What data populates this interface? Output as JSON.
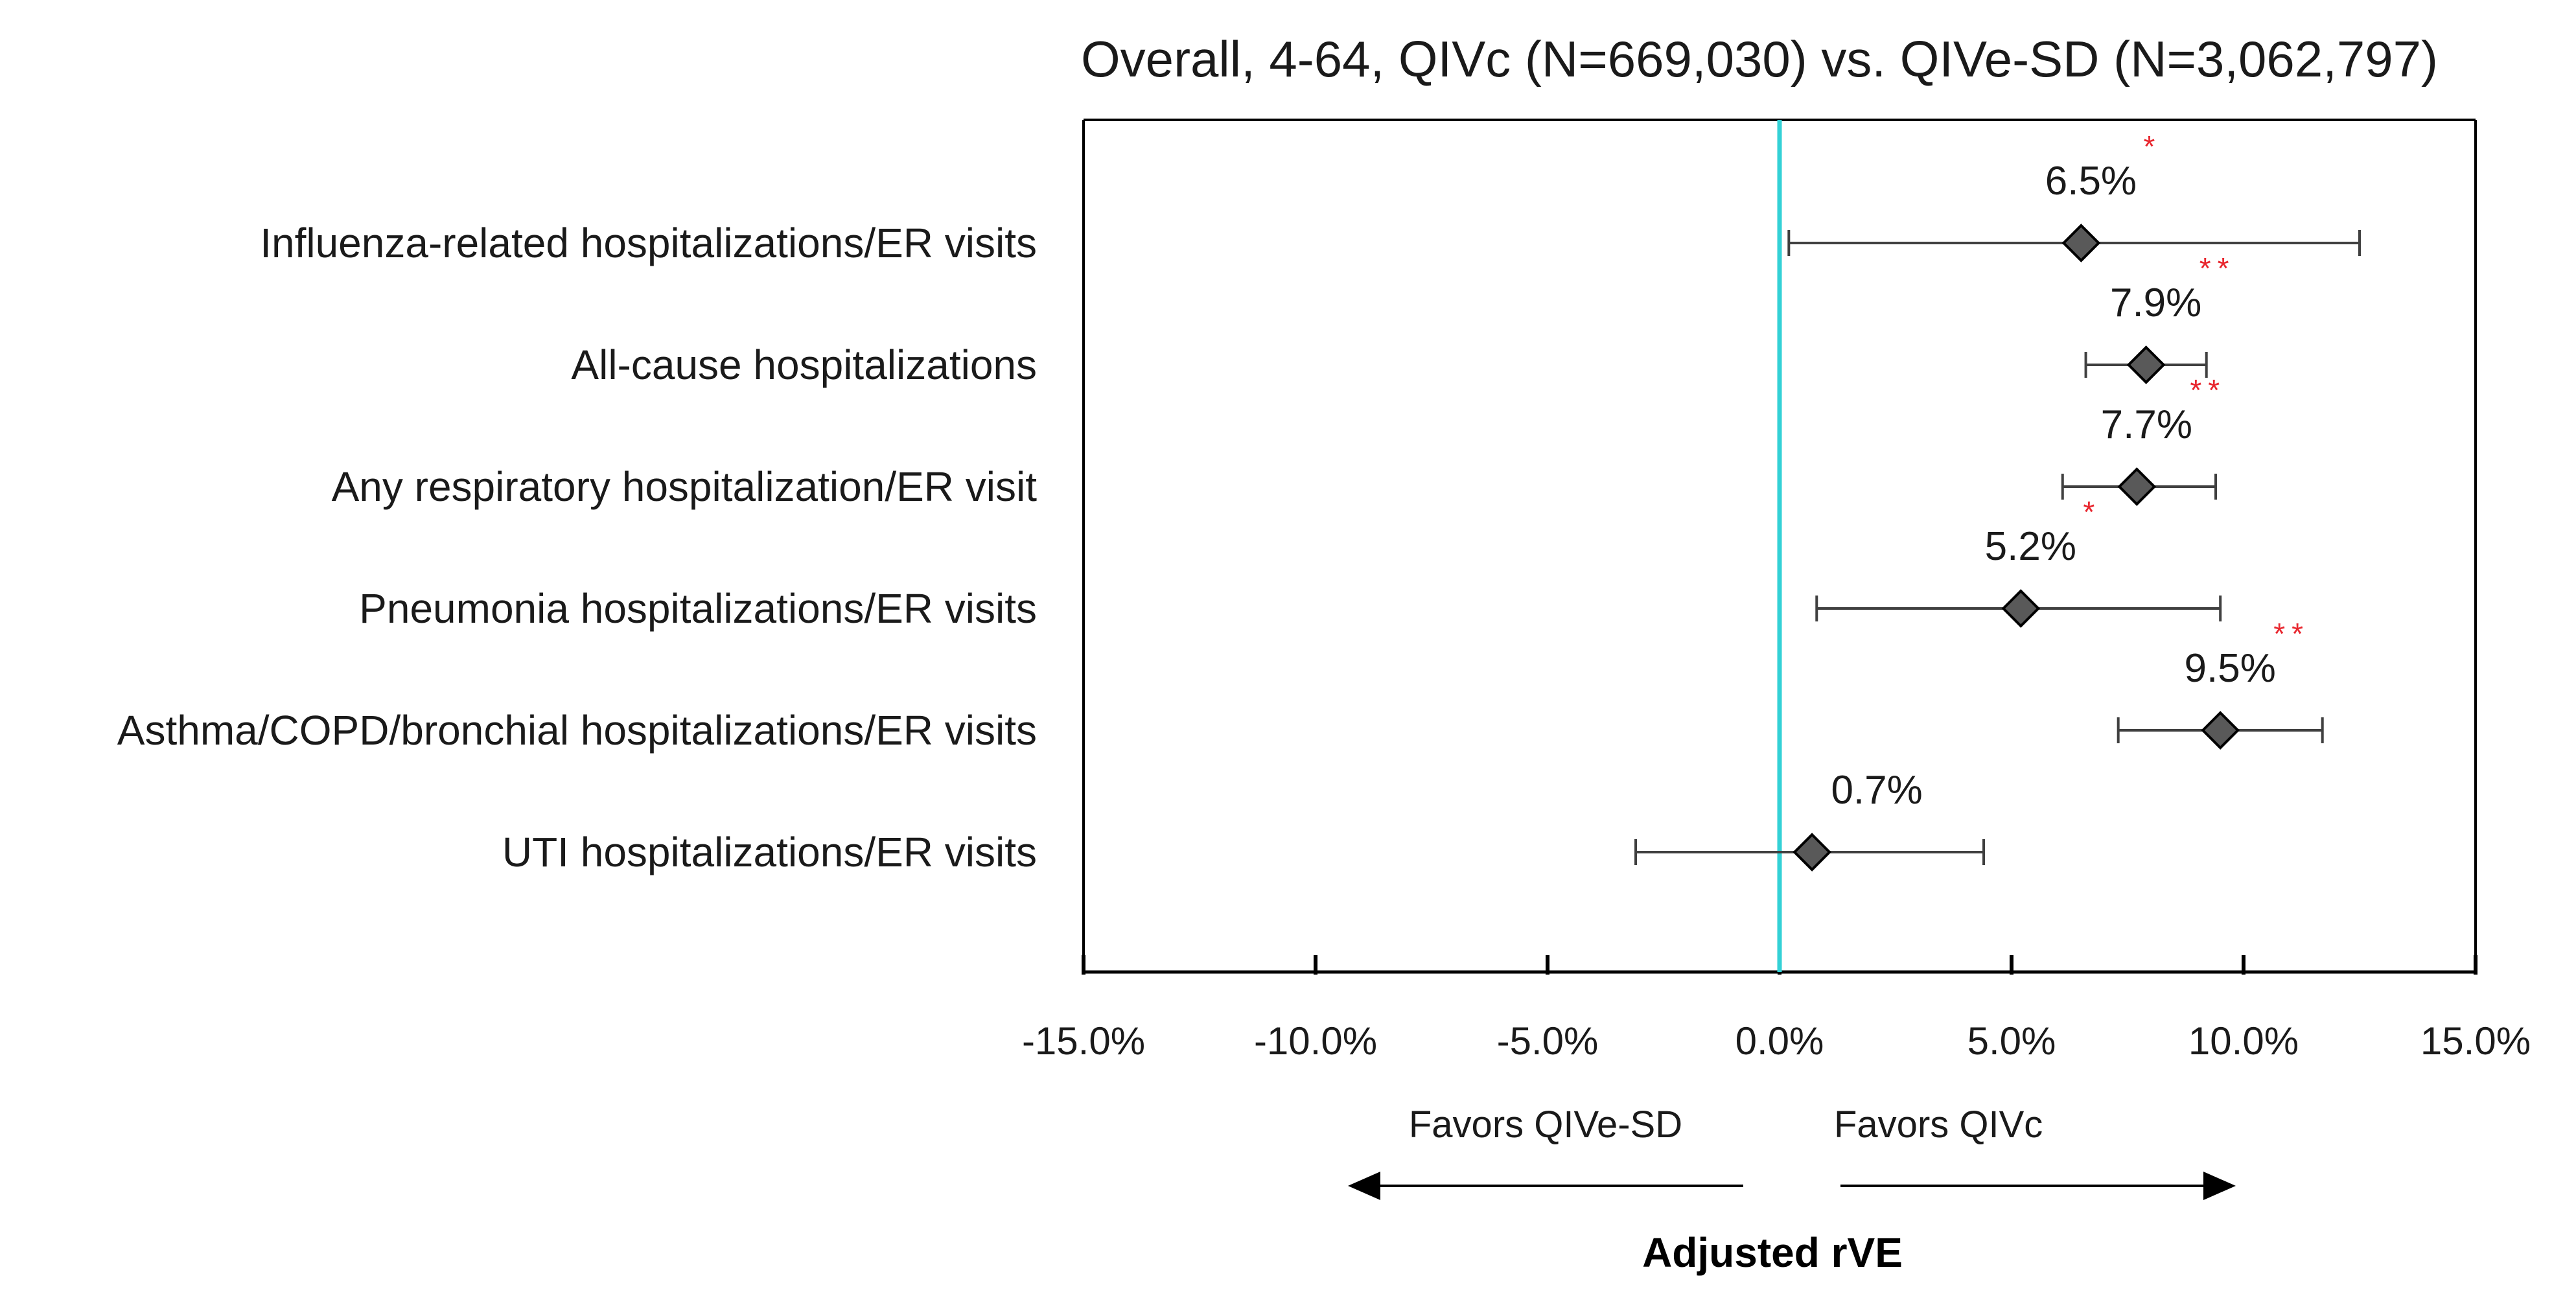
{
  "chart_data": {
    "type": "forest",
    "title": "Overall, 4-64, QIVc (N=669,030) vs. QIVe-SD (N=3,062,797)",
    "xlabel": "Adjusted rVE",
    "xlim": [
      -15,
      15
    ],
    "xticks": [
      -15,
      -10,
      -5,
      0,
      5,
      10,
      15
    ],
    "xtick_labels": [
      "-15.0%",
      "-10.0%",
      "-5.0%",
      "0.0%",
      "5.0%",
      "10.0%",
      "15.0%"
    ],
    "reference_line": 0,
    "favors_left": "Favors QIVe-SD",
    "favors_right": "Favors QIVc",
    "rows": [
      {
        "label": "Influenza-related hospitalizations/ER visits",
        "estimate": 6.5,
        "lower": 0.2,
        "upper": 12.5,
        "value_label": "6.5%",
        "stars": "*"
      },
      {
        "label": "All-cause hospitalizations",
        "estimate": 7.9,
        "lower": 6.6,
        "upper": 9.2,
        "value_label": "7.9%",
        "stars": "**"
      },
      {
        "label": "Any respiratory hospitalization/ER visit",
        "estimate": 7.7,
        "lower": 6.1,
        "upper": 9.4,
        "value_label": "7.7%",
        "stars": "**"
      },
      {
        "label": "Pneumonia hospitalizations/ER visits",
        "estimate": 5.2,
        "lower": 0.8,
        "upper": 9.5,
        "value_label": "5.2%",
        "stars": "*"
      },
      {
        "label": "Asthma/COPD/bronchial hospitalizations/ER visits",
        "estimate": 9.5,
        "lower": 7.3,
        "upper": 11.7,
        "value_label": "9.5%",
        "stars": "**"
      },
      {
        "label": "UTI hospitalizations/ER visits",
        "estimate": 0.7,
        "lower": -3.1,
        "upper": 4.4,
        "value_label": "0.7%",
        "stars": ""
      }
    ]
  },
  "colors": {
    "reference_line": "#33d1d6",
    "marker_fill": "#595959",
    "marker_stroke": "#000000",
    "error_bar": "#404040",
    "star": "#e8262e",
    "axis": "#000000"
  }
}
